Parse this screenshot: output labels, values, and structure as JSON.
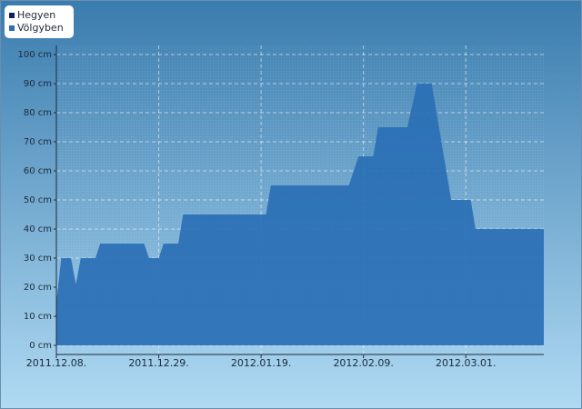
{
  "chart_data": {
    "type": "area",
    "x": [
      "2011.12.08.",
      "2011.12.09.",
      "2011.12.11.",
      "2011.12.12.",
      "2011.12.13.",
      "2011.12.16.",
      "2011.12.17.",
      "2011.12.26.",
      "2011.12.27.",
      "2011.12.29.",
      "2011.12.30.",
      "2012.01.02.",
      "2012.01.03.",
      "2012.01.20.",
      "2012.01.21.",
      "2012.02.06.",
      "2012.02.08.",
      "2012.02.11.",
      "2012.02.12.",
      "2012.02.18.",
      "2012.02.20.",
      "2012.02.23.",
      "2012.02.25.",
      "2012.02.27.",
      "2012.03.02.",
      "2012.03.03.",
      "2012.03.17."
    ],
    "series": [
      {
        "name": "Hegyen",
        "color": "#14205e",
        "values": [
          null,
          null,
          null,
          null,
          null,
          null,
          null,
          null,
          null,
          null,
          null,
          null,
          null,
          null,
          null,
          null,
          null,
          null,
          null,
          null,
          null,
          null,
          null,
          null,
          null,
          null,
          null
        ]
      },
      {
        "name": "Völgyben",
        "color": "#2a6fb5",
        "values": [
          15,
          30,
          30,
          21,
          30,
          30,
          35,
          35,
          30,
          30,
          35,
          35,
          45,
          45,
          55,
          55,
          65,
          65,
          75,
          75,
          90,
          90,
          70,
          50,
          50,
          40,
          40
        ]
      }
    ],
    "xlim": [
      "2011.12.08.",
      "2012.03.17."
    ],
    "xticks": [
      "2011.12.08.",
      "2011.12.29.",
      "2012.01.19.",
      "2012.02.09.",
      "2012.03.01."
    ],
    "ylim": [
      0,
      100
    ],
    "yticks": [
      {
        "value": 0,
        "label": "0 cm"
      },
      {
        "value": 10,
        "label": "10 cm"
      },
      {
        "value": 20,
        "label": "20 cm"
      },
      {
        "value": 30,
        "label": "30 cm"
      },
      {
        "value": 40,
        "label": "40 cm"
      },
      {
        "value": 50,
        "label": "50 cm"
      },
      {
        "value": 60,
        "label": "60 cm"
      },
      {
        "value": 70,
        "label": "70 cm"
      },
      {
        "value": 80,
        "label": "80 cm"
      },
      {
        "value": 90,
        "label": "90 cm"
      },
      {
        "value": 100,
        "label": "100 cm"
      }
    ],
    "grid": true,
    "legend": "top-left"
  }
}
